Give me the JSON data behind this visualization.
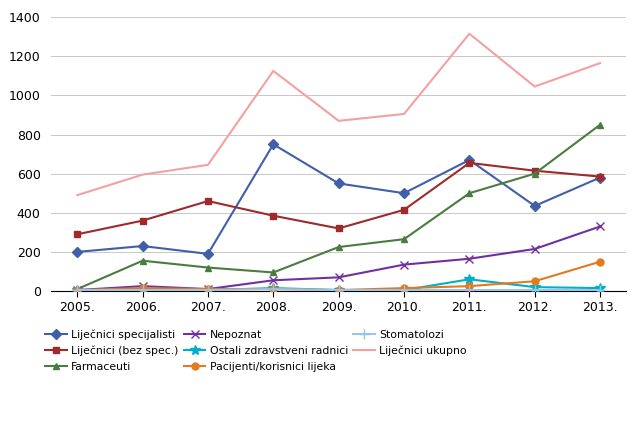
{
  "years": [
    2005,
    2006,
    2007,
    2008,
    2009,
    2010,
    2011,
    2012,
    2013
  ],
  "series": {
    "Liječnici specijalisti": {
      "values": [
        200,
        230,
        190,
        750,
        550,
        500,
        670,
        435,
        580
      ],
      "color": "#3f5fa8",
      "marker": "D",
      "markersize": 5,
      "linewidth": 1.5
    },
    "Liječnici (bez spec.)": {
      "values": [
        290,
        360,
        460,
        385,
        320,
        415,
        655,
        615,
        585
      ],
      "color": "#9e2a2b",
      "marker": "s",
      "markersize": 5,
      "linewidth": 1.5
    },
    "Farmaceuti": {
      "values": [
        10,
        155,
        120,
        95,
        225,
        265,
        500,
        600,
        850
      ],
      "color": "#4a7c3f",
      "marker": "^",
      "markersize": 5,
      "linewidth": 1.5
    },
    "Nepoznat": {
      "values": [
        5,
        25,
        10,
        55,
        70,
        135,
        165,
        215,
        330
      ],
      "color": "#7030a0",
      "marker": "x",
      "markersize": 6,
      "linewidth": 1.5
    },
    "Ostali zdravstveni radnici": {
      "values": [
        5,
        5,
        5,
        15,
        5,
        5,
        60,
        20,
        15
      ],
      "color": "#00b0c8",
      "marker": "*",
      "markersize": 7,
      "linewidth": 1.5
    },
    "Pacijenti/korisnici lijeka": {
      "values": [
        5,
        15,
        10,
        10,
        5,
        15,
        25,
        50,
        150
      ],
      "color": "#e07b20",
      "marker": "o",
      "markersize": 5,
      "linewidth": 1.5
    },
    "Stomatolozi": {
      "values": [
        5,
        5,
        5,
        10,
        5,
        5,
        5,
        5,
        5
      ],
      "color": "#9dc3e6",
      "marker": "+",
      "markersize": 7,
      "linewidth": 1.5
    },
    "Liječnici ukupno": {
      "values": [
        490,
        595,
        645,
        1125,
        870,
        905,
        1315,
        1045,
        1165
      ],
      "color": "#f4a0a0",
      "marker": null,
      "markersize": 0,
      "linewidth": 1.5
    }
  },
  "ylim": [
    0,
    1400
  ],
  "yticks": [
    0,
    200,
    400,
    600,
    800,
    1000,
    1200,
    1400
  ],
  "background_color": "#ffffff",
  "grid_color": "#c8c8c8",
  "legend_order": [
    "Liječnici specijalisti",
    "Liječnici (bez spec.)",
    "Farmaceuti",
    "Nepoznat",
    "Ostali zdravstveni radnici",
    "Pacijenti/korisnici lijeka",
    "Stomatolozi",
    "Liječnici ukupno"
  ]
}
